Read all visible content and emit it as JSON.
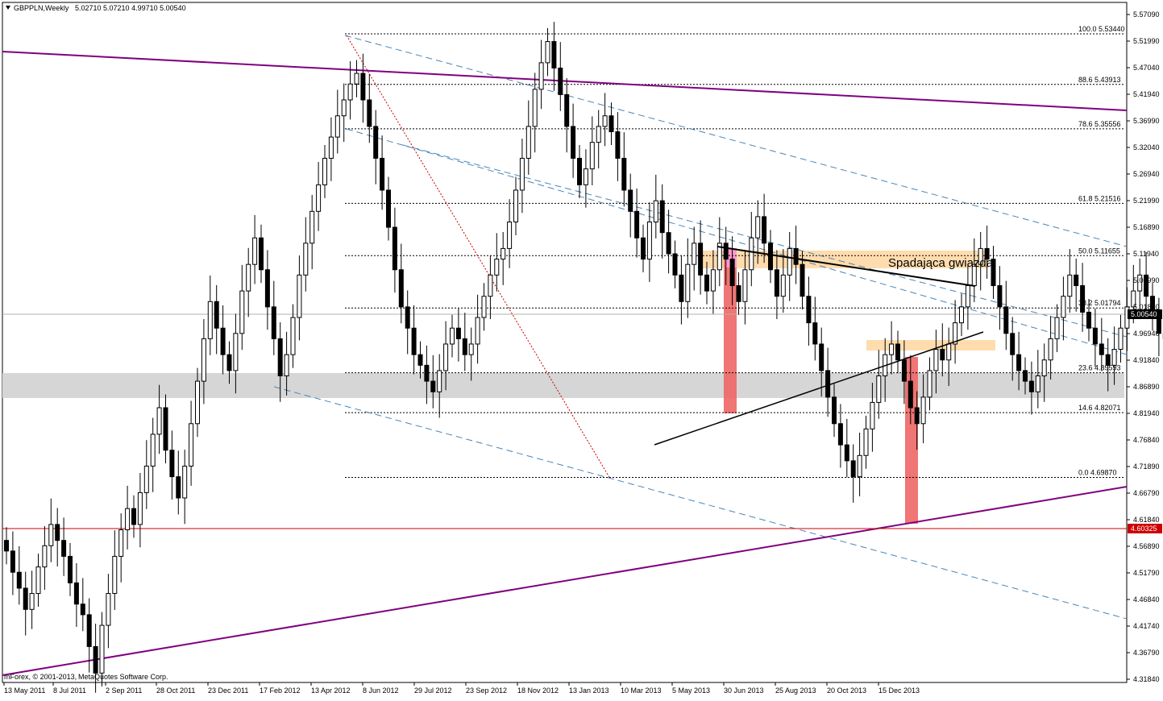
{
  "window": {
    "title": "GBPPLN,Weekly",
    "ohlc": "5.02710 5.07210 4.99710 5.00540"
  },
  "copyright": "MetaQuotes Software Corp.",
  "copyright_prefix": "mForex, © 2001-2013,",
  "colors": {
    "bull_fill": "#ffffff",
    "bear_fill": "#000000",
    "wick": "#000000",
    "trend_purple": "#800080",
    "channel_blue": "#4a86b8",
    "fib_dotted": "#000000",
    "red_dotted": "#cc0000",
    "highlight_orange": "#ffdcae",
    "highlight_pink": "#ff99cc",
    "target_red": "#ee6666",
    "support_band": "#d6d6d6",
    "level_red": "#cc0000"
  },
  "chart_data": {
    "type": "candlestick",
    "symbol": "GBPPLN",
    "timeframe": "Weekly",
    "ylim": [
      4.3,
      5.6
    ],
    "y_ticks": [
      "5.57090",
      "5.51990",
      "5.47040",
      "5.41940",
      "5.36990",
      "5.32040",
      "5.26940",
      "5.21990",
      "5.16890",
      "5.11940",
      "5.06990",
      "5.01890",
      "4.96940",
      "4.91840",
      "4.86890",
      "4.81940",
      "4.76840",
      "4.71890",
      "4.66790",
      "4.61840",
      "4.56890",
      "4.51790",
      "4.46840",
      "4.41740",
      "4.36790",
      "4.31840"
    ],
    "x_ticks": [
      "13 May 2011",
      "8 Jul 2011",
      "2 Sep 2011",
      "28 Oct 2011",
      "23 Dec 2011",
      "17 Feb 2012",
      "13 Apr 2012",
      "8 Jun 2012",
      "29 Jul 2012",
      "23 Sep 2012",
      "18 Nov 2012",
      "13 Jan 2013",
      "10 Mar 2013",
      "5 May 2013",
      "30 Jun 2013",
      "25 Aug 2013",
      "20 Oct 2013",
      "15 Dec 2013"
    ],
    "current_price": "5.00540",
    "level_price": "4.60325",
    "fibonacci": [
      {
        "ratio": "100.0",
        "price": "5.53440"
      },
      {
        "ratio": "88.6",
        "price": "5.43913"
      },
      {
        "ratio": "78.6",
        "price": "5.35556"
      },
      {
        "ratio": "61.8",
        "price": "5.21516"
      },
      {
        "ratio": "50.0",
        "price": "5.11655"
      },
      {
        "ratio": "38.2",
        "price": "5.01794"
      },
      {
        "ratio": "23.6",
        "price": "4.89593"
      },
      {
        "ratio": "14.6",
        "price": "4.82071"
      },
      {
        "ratio": "0.0",
        "price": "4.69870"
      }
    ],
    "annotation": "Spadająca gwiazda",
    "closes": [
      4.56,
      4.52,
      4.49,
      4.45,
      4.48,
      4.53,
      4.57,
      4.61,
      4.58,
      4.55,
      4.5,
      4.46,
      4.44,
      4.38,
      4.33,
      4.42,
      4.48,
      4.55,
      4.6,
      4.64,
      4.61,
      4.67,
      4.72,
      4.78,
      4.83,
      4.75,
      4.7,
      4.66,
      4.72,
      4.8,
      4.88,
      4.96,
      5.03,
      4.98,
      4.93,
      4.9,
      4.97,
      5.05,
      5.1,
      5.15,
      5.09,
      5.02,
      4.96,
      4.89,
      4.93,
      5.0,
      5.08,
      5.14,
      5.2,
      5.25,
      5.3,
      5.34,
      5.38,
      5.41,
      5.44,
      5.46,
      5.41,
      5.36,
      5.3,
      5.24,
      5.17,
      5.09,
      5.02,
      4.98,
      4.93,
      4.91,
      4.88,
      4.86,
      4.9,
      4.95,
      4.98,
      4.96,
      4.93,
      4.95,
      5.0,
      5.04,
      5.08,
      5.11,
      5.13,
      5.18,
      5.24,
      5.3,
      5.36,
      5.43,
      5.48,
      5.52,
      5.47,
      5.42,
      5.36,
      5.3,
      5.25,
      5.28,
      5.33,
      5.36,
      5.38,
      5.35,
      5.3,
      5.24,
      5.2,
      5.15,
      5.11,
      5.18,
      5.22,
      5.16,
      5.12,
      5.08,
      5.03,
      5.1,
      5.14,
      5.08,
      5.05,
      5.09,
      5.14,
      5.11,
      5.06,
      5.03,
      5.09,
      5.15,
      5.19,
      5.14,
      5.09,
      5.04,
      5.08,
      5.13,
      5.1,
      5.04,
      4.99,
      4.95,
      4.9,
      4.85,
      4.8,
      4.76,
      4.73,
      4.7,
      4.74,
      4.79,
      4.84,
      4.89,
      4.93,
      4.95,
      4.92,
      4.88,
      4.83,
      4.8,
      4.85,
      4.9,
      4.94,
      4.92,
      4.95,
      4.99,
      5.02,
      5.06,
      5.1,
      5.13,
      5.11,
      5.06,
      5.02,
      4.97,
      4.93,
      4.9,
      4.88,
      4.86,
      4.89,
      4.92,
      4.96,
      5.0,
      5.04,
      5.08,
      5.06,
      5.01,
      4.98,
      4.95,
      4.93,
      4.91,
      4.94,
      4.98,
      5.02,
      5.05,
      5.08,
      5.04,
      5.0,
      4.97,
      4.96,
      4.99,
      5.03,
      5.0
    ]
  }
}
